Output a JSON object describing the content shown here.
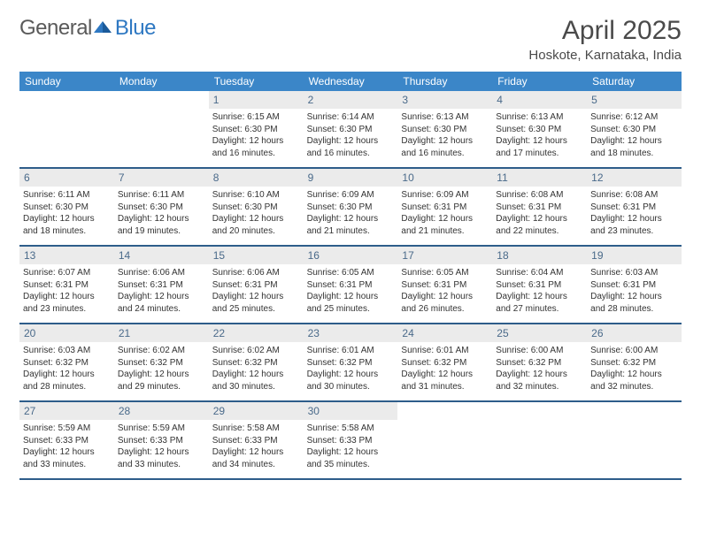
{
  "logo": {
    "text1": "General",
    "text2": "Blue"
  },
  "header": {
    "month_title": "April 2025",
    "location": "Hoskote, Karnataka, India"
  },
  "colors": {
    "header_bg": "#3b86c8",
    "header_text": "#ffffff",
    "daynum_bg": "#ebebeb",
    "daynum_text": "#4a6a8a",
    "border": "#2e5d8a",
    "body_text": "#333333"
  },
  "weekdays": [
    "Sunday",
    "Monday",
    "Tuesday",
    "Wednesday",
    "Thursday",
    "Friday",
    "Saturday"
  ],
  "weeks": [
    [
      {
        "day": "",
        "text": ""
      },
      {
        "day": "",
        "text": ""
      },
      {
        "day": "1",
        "text": "Sunrise: 6:15 AM\nSunset: 6:30 PM\nDaylight: 12 hours and 16 minutes."
      },
      {
        "day": "2",
        "text": "Sunrise: 6:14 AM\nSunset: 6:30 PM\nDaylight: 12 hours and 16 minutes."
      },
      {
        "day": "3",
        "text": "Sunrise: 6:13 AM\nSunset: 6:30 PM\nDaylight: 12 hours and 16 minutes."
      },
      {
        "day": "4",
        "text": "Sunrise: 6:13 AM\nSunset: 6:30 PM\nDaylight: 12 hours and 17 minutes."
      },
      {
        "day": "5",
        "text": "Sunrise: 6:12 AM\nSunset: 6:30 PM\nDaylight: 12 hours and 18 minutes."
      }
    ],
    [
      {
        "day": "6",
        "text": "Sunrise: 6:11 AM\nSunset: 6:30 PM\nDaylight: 12 hours and 18 minutes."
      },
      {
        "day": "7",
        "text": "Sunrise: 6:11 AM\nSunset: 6:30 PM\nDaylight: 12 hours and 19 minutes."
      },
      {
        "day": "8",
        "text": "Sunrise: 6:10 AM\nSunset: 6:30 PM\nDaylight: 12 hours and 20 minutes."
      },
      {
        "day": "9",
        "text": "Sunrise: 6:09 AM\nSunset: 6:30 PM\nDaylight: 12 hours and 21 minutes."
      },
      {
        "day": "10",
        "text": "Sunrise: 6:09 AM\nSunset: 6:31 PM\nDaylight: 12 hours and 21 minutes."
      },
      {
        "day": "11",
        "text": "Sunrise: 6:08 AM\nSunset: 6:31 PM\nDaylight: 12 hours and 22 minutes."
      },
      {
        "day": "12",
        "text": "Sunrise: 6:08 AM\nSunset: 6:31 PM\nDaylight: 12 hours and 23 minutes."
      }
    ],
    [
      {
        "day": "13",
        "text": "Sunrise: 6:07 AM\nSunset: 6:31 PM\nDaylight: 12 hours and 23 minutes."
      },
      {
        "day": "14",
        "text": "Sunrise: 6:06 AM\nSunset: 6:31 PM\nDaylight: 12 hours and 24 minutes."
      },
      {
        "day": "15",
        "text": "Sunrise: 6:06 AM\nSunset: 6:31 PM\nDaylight: 12 hours and 25 minutes."
      },
      {
        "day": "16",
        "text": "Sunrise: 6:05 AM\nSunset: 6:31 PM\nDaylight: 12 hours and 25 minutes."
      },
      {
        "day": "17",
        "text": "Sunrise: 6:05 AM\nSunset: 6:31 PM\nDaylight: 12 hours and 26 minutes."
      },
      {
        "day": "18",
        "text": "Sunrise: 6:04 AM\nSunset: 6:31 PM\nDaylight: 12 hours and 27 minutes."
      },
      {
        "day": "19",
        "text": "Sunrise: 6:03 AM\nSunset: 6:31 PM\nDaylight: 12 hours and 28 minutes."
      }
    ],
    [
      {
        "day": "20",
        "text": "Sunrise: 6:03 AM\nSunset: 6:32 PM\nDaylight: 12 hours and 28 minutes."
      },
      {
        "day": "21",
        "text": "Sunrise: 6:02 AM\nSunset: 6:32 PM\nDaylight: 12 hours and 29 minutes."
      },
      {
        "day": "22",
        "text": "Sunrise: 6:02 AM\nSunset: 6:32 PM\nDaylight: 12 hours and 30 minutes."
      },
      {
        "day": "23",
        "text": "Sunrise: 6:01 AM\nSunset: 6:32 PM\nDaylight: 12 hours and 30 minutes."
      },
      {
        "day": "24",
        "text": "Sunrise: 6:01 AM\nSunset: 6:32 PM\nDaylight: 12 hours and 31 minutes."
      },
      {
        "day": "25",
        "text": "Sunrise: 6:00 AM\nSunset: 6:32 PM\nDaylight: 12 hours and 32 minutes."
      },
      {
        "day": "26",
        "text": "Sunrise: 6:00 AM\nSunset: 6:32 PM\nDaylight: 12 hours and 32 minutes."
      }
    ],
    [
      {
        "day": "27",
        "text": "Sunrise: 5:59 AM\nSunset: 6:33 PM\nDaylight: 12 hours and 33 minutes."
      },
      {
        "day": "28",
        "text": "Sunrise: 5:59 AM\nSunset: 6:33 PM\nDaylight: 12 hours and 33 minutes."
      },
      {
        "day": "29",
        "text": "Sunrise: 5:58 AM\nSunset: 6:33 PM\nDaylight: 12 hours and 34 minutes."
      },
      {
        "day": "30",
        "text": "Sunrise: 5:58 AM\nSunset: 6:33 PM\nDaylight: 12 hours and 35 minutes."
      },
      {
        "day": "",
        "text": ""
      },
      {
        "day": "",
        "text": ""
      },
      {
        "day": "",
        "text": ""
      }
    ]
  ]
}
